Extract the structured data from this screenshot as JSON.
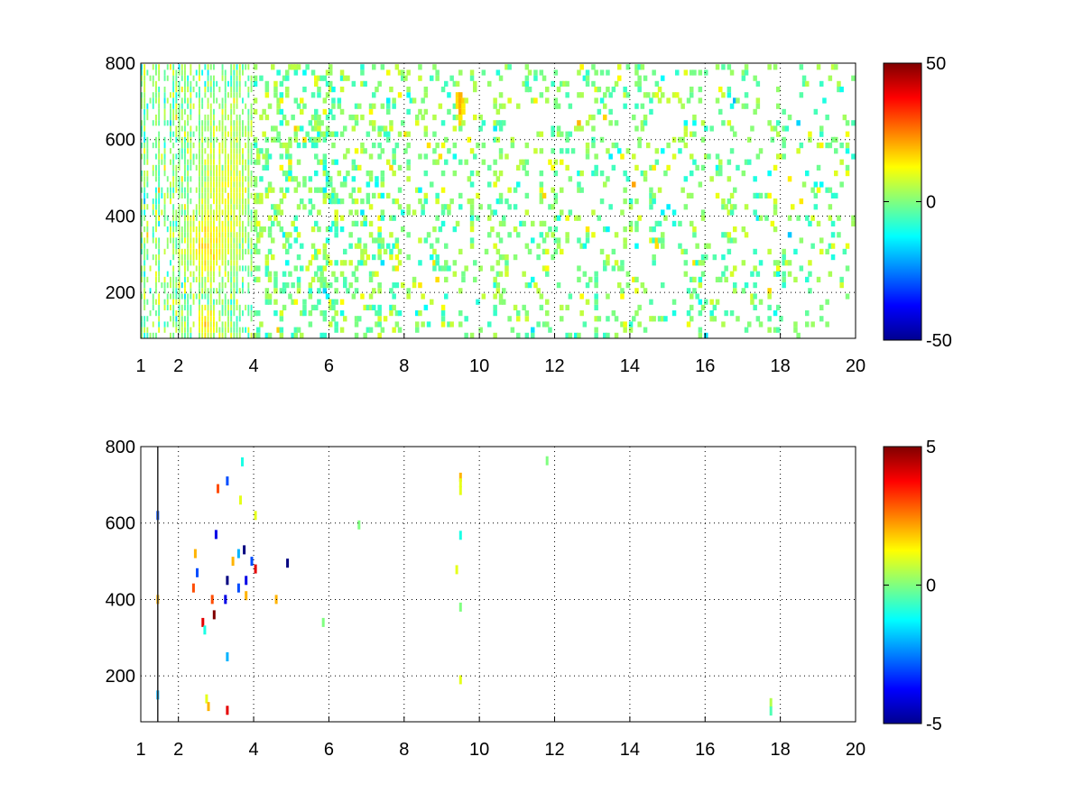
{
  "chart_data": [
    {
      "type": "heatmap",
      "title": "",
      "xlabel": "",
      "ylabel": "",
      "xlim": [
        1,
        20
      ],
      "ylim": [
        80,
        800
      ],
      "x_ticks": [
        "1",
        "2",
        "4",
        "6",
        "8",
        "10",
        "12",
        "14",
        "16",
        "18",
        "20"
      ],
      "x_tick_values": [
        1,
        2,
        4,
        6,
        8,
        10,
        12,
        14,
        16,
        18,
        20
      ],
      "y_ticks": [
        "200",
        "400",
        "600",
        "800"
      ],
      "y_tick_values": [
        200,
        400,
        600,
        800
      ],
      "grid": true,
      "colormap": "jet",
      "colorbar": {
        "min": -50,
        "max": 50,
        "ticks": [
          "50",
          "0",
          "-50"
        ],
        "tick_values": [
          50,
          0,
          -50
        ]
      },
      "density_profile": [
        {
          "x_from": 1,
          "x_to": 4,
          "density": 0.55
        },
        {
          "x_from": 4,
          "x_to": 8,
          "density": 0.22
        },
        {
          "x_from": 8,
          "x_to": 20,
          "density": 0.12
        }
      ],
      "dense_clusters": [
        {
          "x_center": 3.3,
          "y_center": 480,
          "x_spread": 0.45,
          "y_spread": 120,
          "value": 10
        },
        {
          "x_center": 2.8,
          "y_center": 320,
          "x_spread": 0.4,
          "y_spread": 60,
          "value": 15
        },
        {
          "x_center": 2.8,
          "y_center": 120,
          "x_spread": 0.25,
          "y_spread": 30,
          "value": 15
        },
        {
          "x_center": 9.5,
          "y_center": 700,
          "x_spread": 0.08,
          "y_spread": 40,
          "value": 25
        }
      ],
      "value_range_typical": [
        -15,
        15
      ]
    },
    {
      "type": "heatmap",
      "title": "",
      "xlabel": "",
      "ylabel": "",
      "xlim": [
        1,
        20
      ],
      "ylim": [
        80,
        800
      ],
      "x_ticks": [
        "1",
        "2",
        "4",
        "6",
        "8",
        "10",
        "12",
        "14",
        "16",
        "18",
        "20"
      ],
      "x_tick_values": [
        1,
        2,
        4,
        6,
        8,
        10,
        12,
        14,
        16,
        18,
        20
      ],
      "y_ticks": [
        "200",
        "400",
        "600",
        "800"
      ],
      "y_tick_values": [
        200,
        400,
        600,
        800
      ],
      "grid": true,
      "colormap": "jet",
      "colorbar": {
        "min": -5,
        "max": 5,
        "ticks": [
          "5",
          "0",
          "-5"
        ],
        "tick_values": [
          5,
          0,
          -5
        ]
      },
      "cells": [
        {
          "x": 1.45,
          "y": 620,
          "v": -3
        },
        {
          "x": 1.45,
          "y": 400,
          "v": 2
        },
        {
          "x": 1.45,
          "y": 150,
          "v": -2
        },
        {
          "x": 2.4,
          "y": 430,
          "v": 3
        },
        {
          "x": 2.45,
          "y": 520,
          "v": 2
        },
        {
          "x": 2.5,
          "y": 470,
          "v": -3
        },
        {
          "x": 2.65,
          "y": 340,
          "v": 4
        },
        {
          "x": 2.7,
          "y": 320,
          "v": -1
        },
        {
          "x": 2.75,
          "y": 140,
          "v": 1
        },
        {
          "x": 2.8,
          "y": 120,
          "v": 2
        },
        {
          "x": 2.9,
          "y": 400,
          "v": 3
        },
        {
          "x": 2.95,
          "y": 360,
          "v": 5
        },
        {
          "x": 3.0,
          "y": 570,
          "v": -4
        },
        {
          "x": 3.05,
          "y": 690,
          "v": 3
        },
        {
          "x": 3.25,
          "y": 400,
          "v": -4
        },
        {
          "x": 3.3,
          "y": 450,
          "v": -5
        },
        {
          "x": 3.3,
          "y": 710,
          "v": -3
        },
        {
          "x": 3.3,
          "y": 250,
          "v": -2
        },
        {
          "x": 3.3,
          "y": 110,
          "v": 4
        },
        {
          "x": 3.45,
          "y": 500,
          "v": 2
        },
        {
          "x": 3.6,
          "y": 430,
          "v": -3
        },
        {
          "x": 3.6,
          "y": 520,
          "v": -2
        },
        {
          "x": 3.65,
          "y": 660,
          "v": 1
        },
        {
          "x": 3.7,
          "y": 760,
          "v": -1
        },
        {
          "x": 3.75,
          "y": 530,
          "v": -5
        },
        {
          "x": 3.8,
          "y": 450,
          "v": -4
        },
        {
          "x": 3.8,
          "y": 410,
          "v": 2
        },
        {
          "x": 3.95,
          "y": 500,
          "v": -3
        },
        {
          "x": 4.05,
          "y": 480,
          "v": 4
        },
        {
          "x": 4.05,
          "y": 620,
          "v": 1
        },
        {
          "x": 4.6,
          "y": 400,
          "v": 2
        },
        {
          "x": 4.9,
          "y": 495,
          "v": -5
        },
        {
          "x": 5.85,
          "y": 340,
          "v": 0
        },
        {
          "x": 6.8,
          "y": 595,
          "v": 0
        },
        {
          "x": 9.4,
          "y": 478,
          "v": 1
        },
        {
          "x": 9.5,
          "y": 720,
          "v": 2
        },
        {
          "x": 9.5,
          "y": 705,
          "v": 1
        },
        {
          "x": 9.5,
          "y": 685,
          "v": 1
        },
        {
          "x": 9.5,
          "y": 568,
          "v": -1
        },
        {
          "x": 9.5,
          "y": 380,
          "v": 0
        },
        {
          "x": 9.5,
          "y": 190,
          "v": 1
        },
        {
          "x": 11.8,
          "y": 763,
          "v": 0
        },
        {
          "x": 17.75,
          "y": 130,
          "v": 0.5
        },
        {
          "x": 17.75,
          "y": 108,
          "v": -0.5
        }
      ]
    }
  ]
}
